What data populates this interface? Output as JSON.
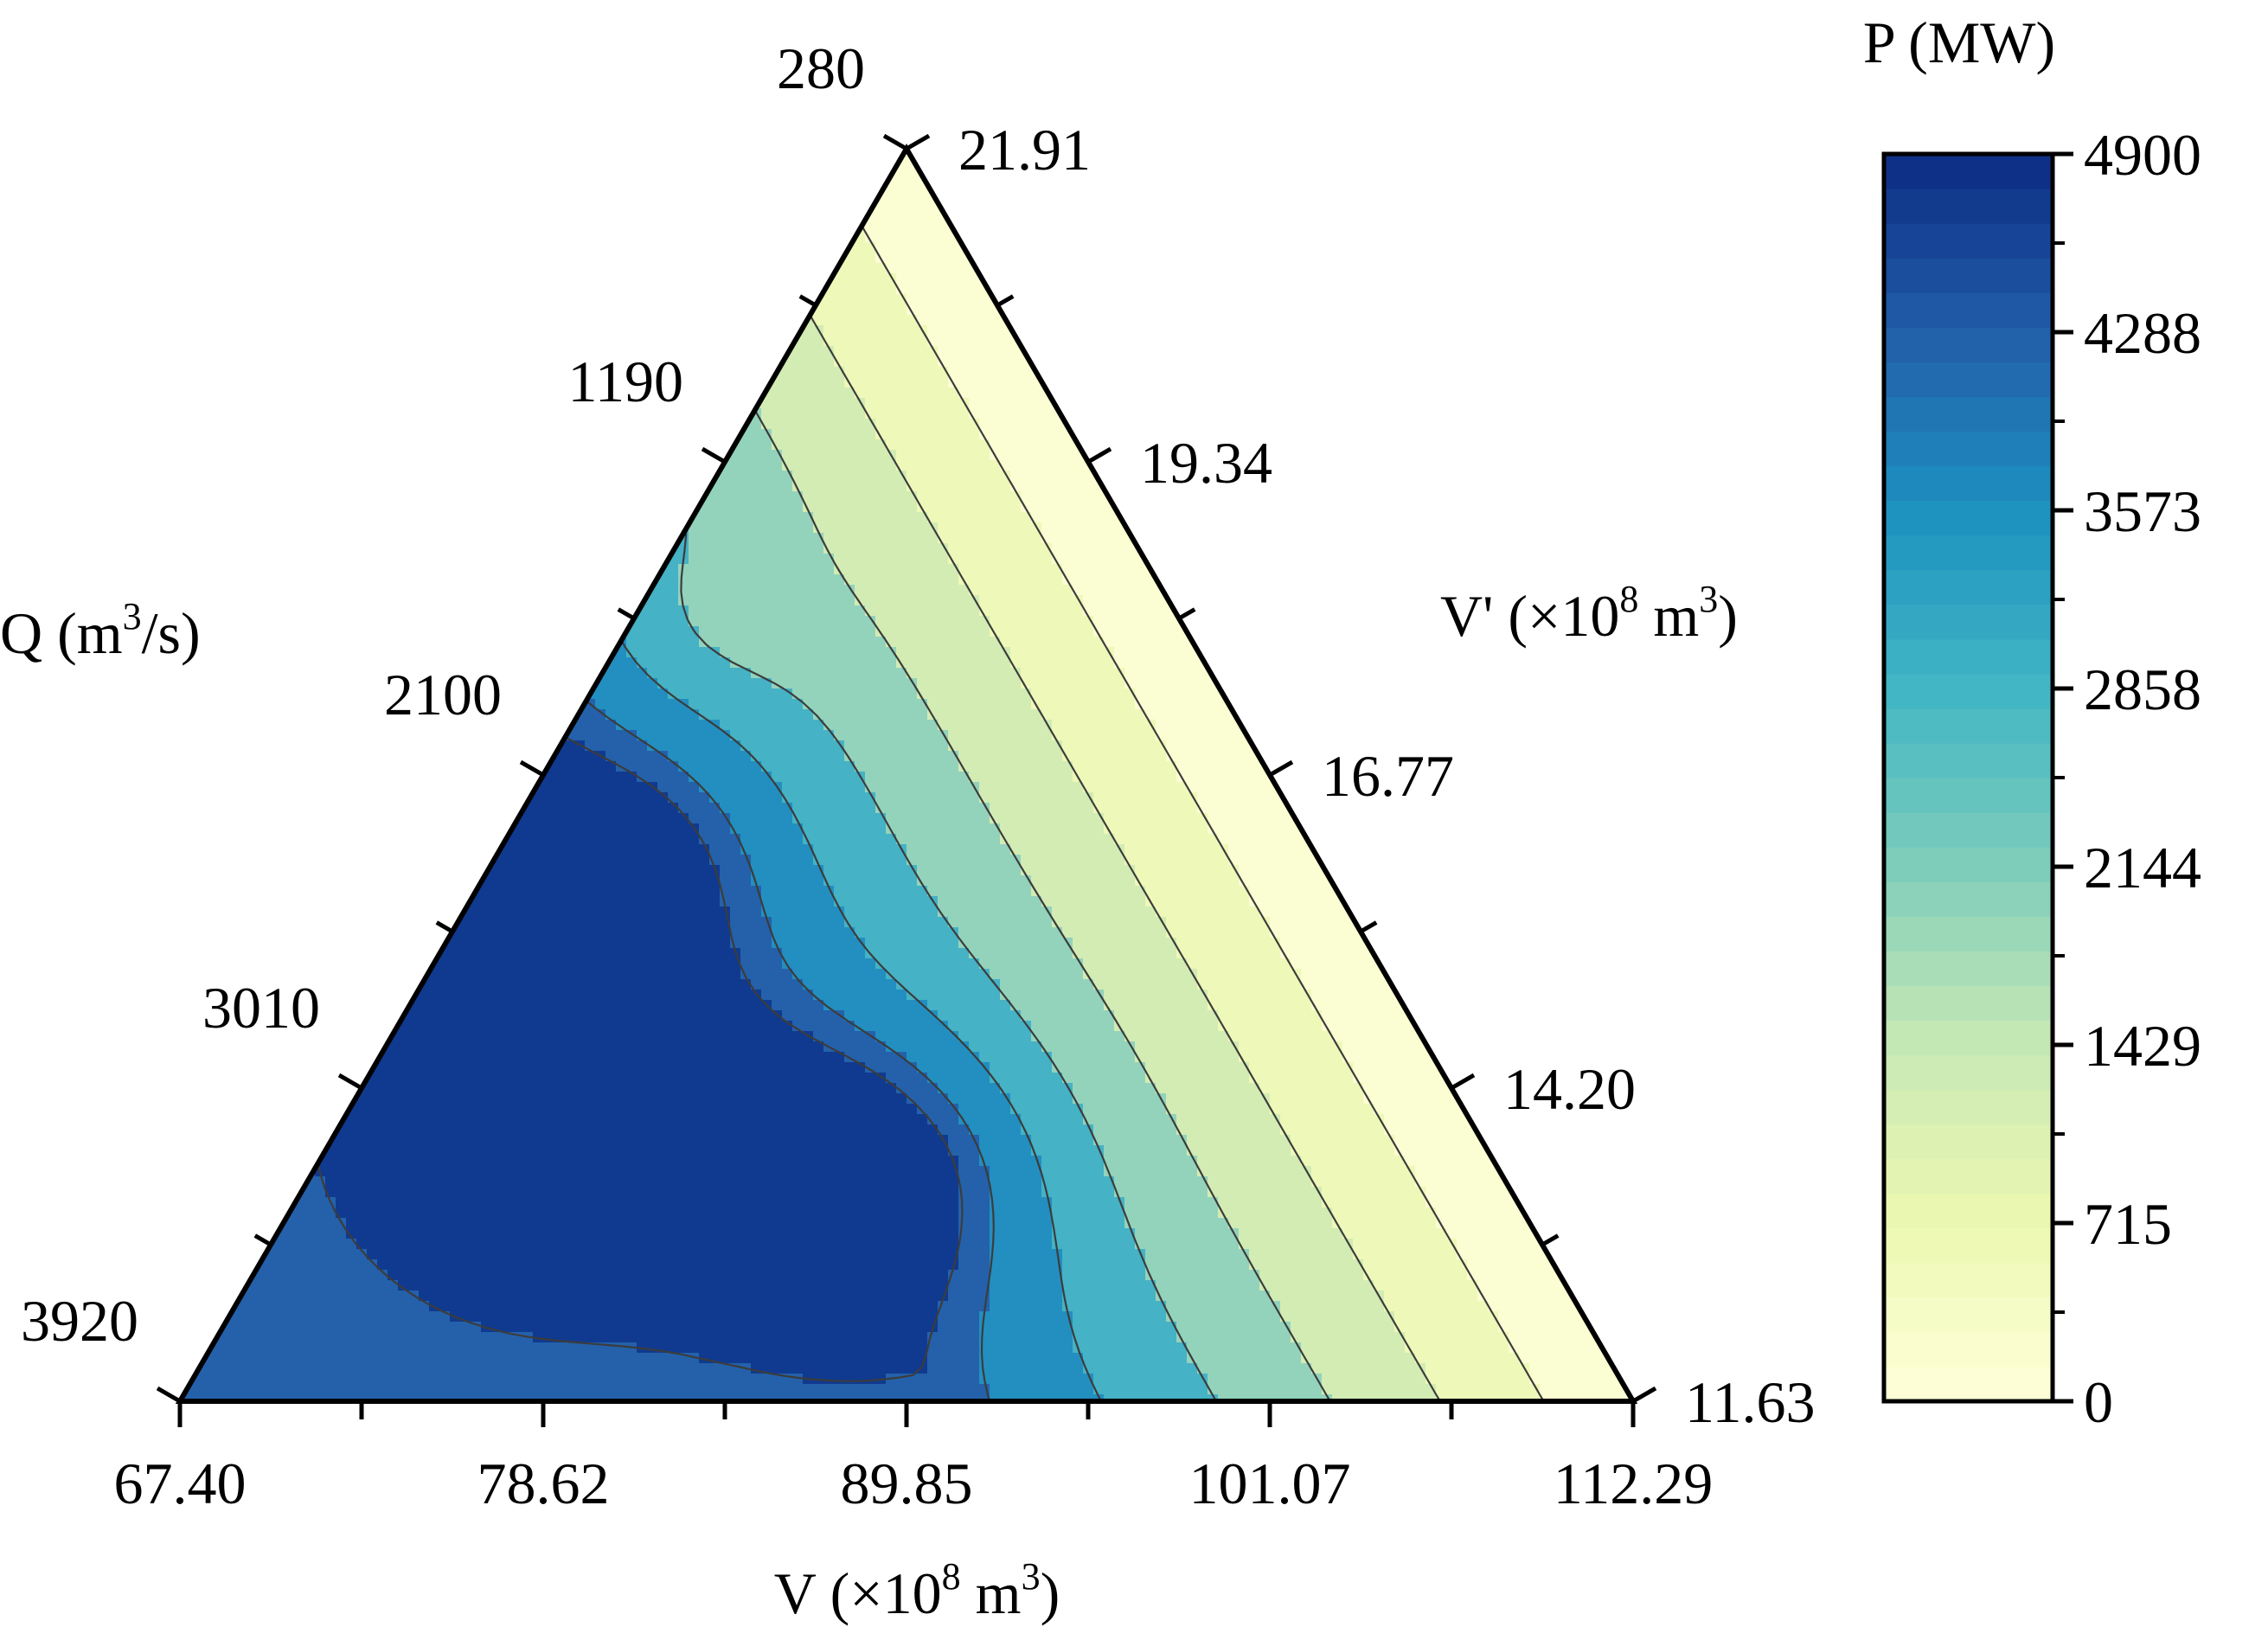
{
  "chart_data": {
    "type": "heatmap",
    "subtype": "ternary-contour",
    "title": "",
    "colorbar": {
      "title": "P (MW)",
      "ticks": [
        "4900",
        "4288",
        "3573",
        "2858",
        "2144",
        "1429",
        "715",
        "0"
      ],
      "min": 0,
      "max": 4900,
      "colors": [
        "#ffffd9",
        "#edf8b1",
        "#c7e9b4",
        "#7fcdbb",
        "#41b6c4",
        "#1d91c0",
        "#225ea8",
        "#0c2c84"
      ]
    },
    "axes": {
      "left": {
        "label_text": "Q (m",
        "label_sup": "3",
        "label_tail": "/s)",
        "ticks": [
          "280",
          "1190",
          "2100",
          "3010",
          "3920"
        ],
        "range": [
          280,
          3920
        ]
      },
      "bottom": {
        "label_text": "V (×10",
        "label_sup": "8",
        "label_mid": " m",
        "label_sup2": "3",
        "label_tail": ")",
        "ticks": [
          "67.40",
          "78.62",
          "89.85",
          "101.07",
          "112.29"
        ],
        "range": [
          67.4,
          112.29
        ]
      },
      "right": {
        "label_text": "V' (×10",
        "label_sup": "8",
        "label_mid": " m",
        "label_sup2": "3",
        "label_tail": ")",
        "ticks": [
          "21.91",
          "19.34",
          "16.77",
          "14.20",
          "11.63"
        ],
        "range": [
          11.63,
          21.91
        ]
      }
    },
    "grid": false,
    "legend": "none",
    "contour_bands": [
      {
        "level": 0,
        "color": "#fbfdd2"
      },
      {
        "level": 715,
        "color": "#eef8b8"
      },
      {
        "level": 1429,
        "color": "#d2ecb3"
      },
      {
        "level": 2144,
        "color": "#93d3bc"
      },
      {
        "level": 2858,
        "color": "#45b2c5"
      },
      {
        "level": 3573,
        "color": "#228fc0"
      },
      {
        "level": 4288,
        "color": "#2461aa"
      },
      {
        "level": 4700,
        "color": "#103a8f"
      }
    ]
  }
}
